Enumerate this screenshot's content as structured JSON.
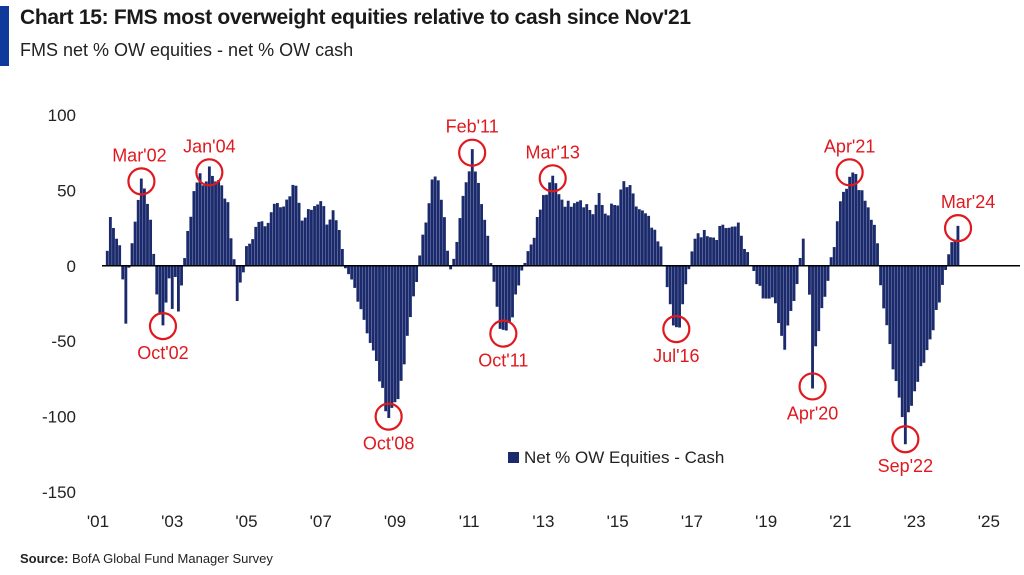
{
  "header": {
    "title": "Chart 15: FMS most overweight equities relative to cash since Nov'21",
    "subtitle": "FMS net % OW equities - net % OW cash"
  },
  "footer": {
    "source_label": "Source:",
    "source_text": " BofA Global Fund Manager Survey"
  },
  "colors": {
    "bar": "#1a2a6c",
    "annotation": "#e0191f",
    "accent": "#0e3b9b",
    "zero_line": "#000000"
  },
  "chart_data": {
    "type": "bar",
    "title": "Chart 15: FMS most overweight equities relative to cash since Nov'21",
    "subtitle": "FMS net % OW equities - net % OW cash",
    "xlabel": "",
    "ylabel": "",
    "ylim": [
      -150,
      100
    ],
    "yticks": [
      100,
      50,
      0,
      -50,
      -100,
      -150
    ],
    "xlim": [
      2001.0,
      2025.3
    ],
    "xticks": [
      {
        "label": "'01",
        "value": 2001
      },
      {
        "label": "'03",
        "value": 2003
      },
      {
        "label": "'05",
        "value": 2005
      },
      {
        "label": "'07",
        "value": 2007
      },
      {
        "label": "'09",
        "value": 2009
      },
      {
        "label": "'11",
        "value": 2011
      },
      {
        "label": "'13",
        "value": 2013
      },
      {
        "label": "'15",
        "value": 2015
      },
      {
        "label": "'17",
        "value": 2017
      },
      {
        "label": "'19",
        "value": 2019
      },
      {
        "label": "'21",
        "value": 2021
      },
      {
        "label": "'23",
        "value": 2023
      },
      {
        "label": "'25",
        "value": 2025
      }
    ],
    "grid": false,
    "legend": {
      "position": "bottom-right",
      "entries": [
        "Net % OW Equities - Cash"
      ]
    },
    "series": [
      {
        "name": "Net % OW Equities - Cash",
        "keypoints": [
          [
            2001.25,
            10
          ],
          [
            2001.33,
            32
          ],
          [
            2001.42,
            28
          ],
          [
            2001.5,
            20
          ],
          [
            2001.58,
            15
          ],
          [
            2001.67,
            -10
          ],
          [
            2001.75,
            -35
          ],
          [
            2001.83,
            -5
          ],
          [
            2001.92,
            15
          ],
          [
            2002.0,
            30
          ],
          [
            2002.08,
            45
          ],
          [
            2002.17,
            56
          ],
          [
            2002.25,
            50
          ],
          [
            2002.33,
            45
          ],
          [
            2002.42,
            30
          ],
          [
            2002.5,
            10
          ],
          [
            2002.58,
            -20
          ],
          [
            2002.67,
            -30
          ],
          [
            2002.75,
            -40
          ],
          [
            2002.83,
            -25
          ],
          [
            2002.92,
            -5
          ],
          [
            2003.0,
            -25
          ],
          [
            2003.08,
            -10
          ],
          [
            2003.17,
            -35
          ],
          [
            2003.25,
            -10
          ],
          [
            2003.33,
            5
          ],
          [
            2003.42,
            20
          ],
          [
            2003.5,
            35
          ],
          [
            2003.58,
            50
          ],
          [
            2003.67,
            55
          ],
          [
            2003.75,
            60
          ],
          [
            2003.83,
            55
          ],
          [
            2004.0,
            62
          ],
          [
            2004.17,
            58
          ],
          [
            2004.33,
            55
          ],
          [
            2004.5,
            40
          ],
          [
            2004.58,
            20
          ],
          [
            2004.67,
            5
          ],
          [
            2004.75,
            -20
          ],
          [
            2004.83,
            -15
          ],
          [
            2005.0,
            10
          ],
          [
            2005.17,
            20
          ],
          [
            2005.33,
            30
          ],
          [
            2005.5,
            25
          ],
          [
            2005.67,
            38
          ],
          [
            2005.83,
            45
          ],
          [
            2006.0,
            40
          ],
          [
            2006.17,
            45
          ],
          [
            2006.33,
            55
          ],
          [
            2006.5,
            30
          ],
          [
            2006.67,
            35
          ],
          [
            2006.83,
            40
          ],
          [
            2007.0,
            45
          ],
          [
            2007.17,
            30
          ],
          [
            2007.33,
            35
          ],
          [
            2007.5,
            20
          ],
          [
            2007.67,
            -5
          ],
          [
            2007.83,
            -10
          ],
          [
            2008.0,
            -20
          ],
          [
            2008.17,
            -35
          ],
          [
            2008.33,
            -50
          ],
          [
            2008.5,
            -65
          ],
          [
            2008.67,
            -85
          ],
          [
            2008.83,
            -100
          ],
          [
            2009.0,
            -90
          ],
          [
            2009.17,
            -80
          ],
          [
            2009.33,
            -50
          ],
          [
            2009.5,
            -20
          ],
          [
            2009.67,
            5
          ],
          [
            2009.83,
            30
          ],
          [
            2010.0,
            60
          ],
          [
            2010.17,
            55
          ],
          [
            2010.33,
            30
          ],
          [
            2010.5,
            -5
          ],
          [
            2010.67,
            20
          ],
          [
            2010.83,
            50
          ],
          [
            2011.0,
            60
          ],
          [
            2011.08,
            75
          ],
          [
            2011.17,
            65
          ],
          [
            2011.33,
            45
          ],
          [
            2011.5,
            20
          ],
          [
            2011.67,
            -10
          ],
          [
            2011.83,
            -40
          ],
          [
            2011.92,
            -45
          ],
          [
            2012.0,
            -40
          ],
          [
            2012.17,
            -30
          ],
          [
            2012.33,
            -10
          ],
          [
            2012.5,
            5
          ],
          [
            2012.67,
            15
          ],
          [
            2012.83,
            30
          ],
          [
            2013.0,
            45
          ],
          [
            2013.17,
            52
          ],
          [
            2013.25,
            58
          ],
          [
            2013.5,
            45
          ],
          [
            2013.67,
            40
          ],
          [
            2013.83,
            45
          ],
          [
            2014.0,
            45
          ],
          [
            2014.17,
            40
          ],
          [
            2014.33,
            35
          ],
          [
            2014.5,
            45
          ],
          [
            2014.67,
            35
          ],
          [
            2014.83,
            38
          ],
          [
            2015.0,
            40
          ],
          [
            2015.17,
            55
          ],
          [
            2015.33,
            50
          ],
          [
            2015.5,
            40
          ],
          [
            2015.67,
            35
          ],
          [
            2015.83,
            30
          ],
          [
            2016.0,
            20
          ],
          [
            2016.17,
            10
          ],
          [
            2016.33,
            -10
          ],
          [
            2016.42,
            -30
          ],
          [
            2016.5,
            -40
          ],
          [
            2016.58,
            -42
          ],
          [
            2016.67,
            -40
          ],
          [
            2016.83,
            -15
          ],
          [
            2017.0,
            10
          ],
          [
            2017.17,
            20
          ],
          [
            2017.33,
            25
          ],
          [
            2017.5,
            15
          ],
          [
            2017.67,
            20
          ],
          [
            2017.83,
            30
          ],
          [
            2018.0,
            25
          ],
          [
            2018.17,
            30
          ],
          [
            2018.33,
            20
          ],
          [
            2018.5,
            10
          ],
          [
            2018.67,
            -5
          ],
          [
            2018.83,
            -15
          ],
          [
            2019.0,
            -25
          ],
          [
            2019.17,
            -20
          ],
          [
            2019.33,
            -35
          ],
          [
            2019.5,
            -55
          ],
          [
            2019.67,
            -30
          ],
          [
            2019.83,
            -10
          ],
          [
            2020.0,
            20
          ],
          [
            2020.17,
            -20
          ],
          [
            2020.25,
            -80
          ],
          [
            2020.33,
            -50
          ],
          [
            2020.5,
            -30
          ],
          [
            2020.67,
            -10
          ],
          [
            2020.83,
            15
          ],
          [
            2021.0,
            45
          ],
          [
            2021.17,
            55
          ],
          [
            2021.25,
            62
          ],
          [
            2021.42,
            58
          ],
          [
            2021.58,
            50
          ],
          [
            2021.75,
            40
          ],
          [
            2021.92,
            25
          ],
          [
            2022.0,
            15
          ],
          [
            2022.08,
            -10
          ],
          [
            2022.17,
            -30
          ],
          [
            2022.33,
            -55
          ],
          [
            2022.5,
            -80
          ],
          [
            2022.67,
            -100
          ],
          [
            2022.75,
            -115
          ],
          [
            2022.83,
            -95
          ],
          [
            2023.0,
            -85
          ],
          [
            2023.17,
            -70
          ],
          [
            2023.33,
            -55
          ],
          [
            2023.5,
            -40
          ],
          [
            2023.67,
            -25
          ],
          [
            2023.83,
            -5
          ],
          [
            2023.92,
            10
          ],
          [
            2024.0,
            15
          ],
          [
            2024.08,
            20
          ],
          [
            2024.17,
            25
          ]
        ]
      }
    ],
    "annotations": [
      {
        "label": "Mar'02",
        "x": 2002.17,
        "y": 56
      },
      {
        "label": "Oct'02",
        "x": 2002.75,
        "y": -40
      },
      {
        "label": "Jan'04",
        "x": 2004.0,
        "y": 62
      },
      {
        "label": "Oct'08",
        "x": 2008.83,
        "y": -100
      },
      {
        "label": "Feb'11",
        "x": 2011.08,
        "y": 75
      },
      {
        "label": "Oct'11",
        "x": 2011.92,
        "y": -45
      },
      {
        "label": "Mar'13",
        "x": 2013.25,
        "y": 58
      },
      {
        "label": "Jul'16",
        "x": 2016.58,
        "y": -42
      },
      {
        "label": "Apr'20",
        "x": 2020.25,
        "y": -80
      },
      {
        "label": "Apr'21",
        "x": 2021.25,
        "y": 62
      },
      {
        "label": "Sep'22",
        "x": 2022.75,
        "y": -115
      },
      {
        "label": "Mar'24",
        "x": 2024.17,
        "y": 25
      }
    ]
  }
}
